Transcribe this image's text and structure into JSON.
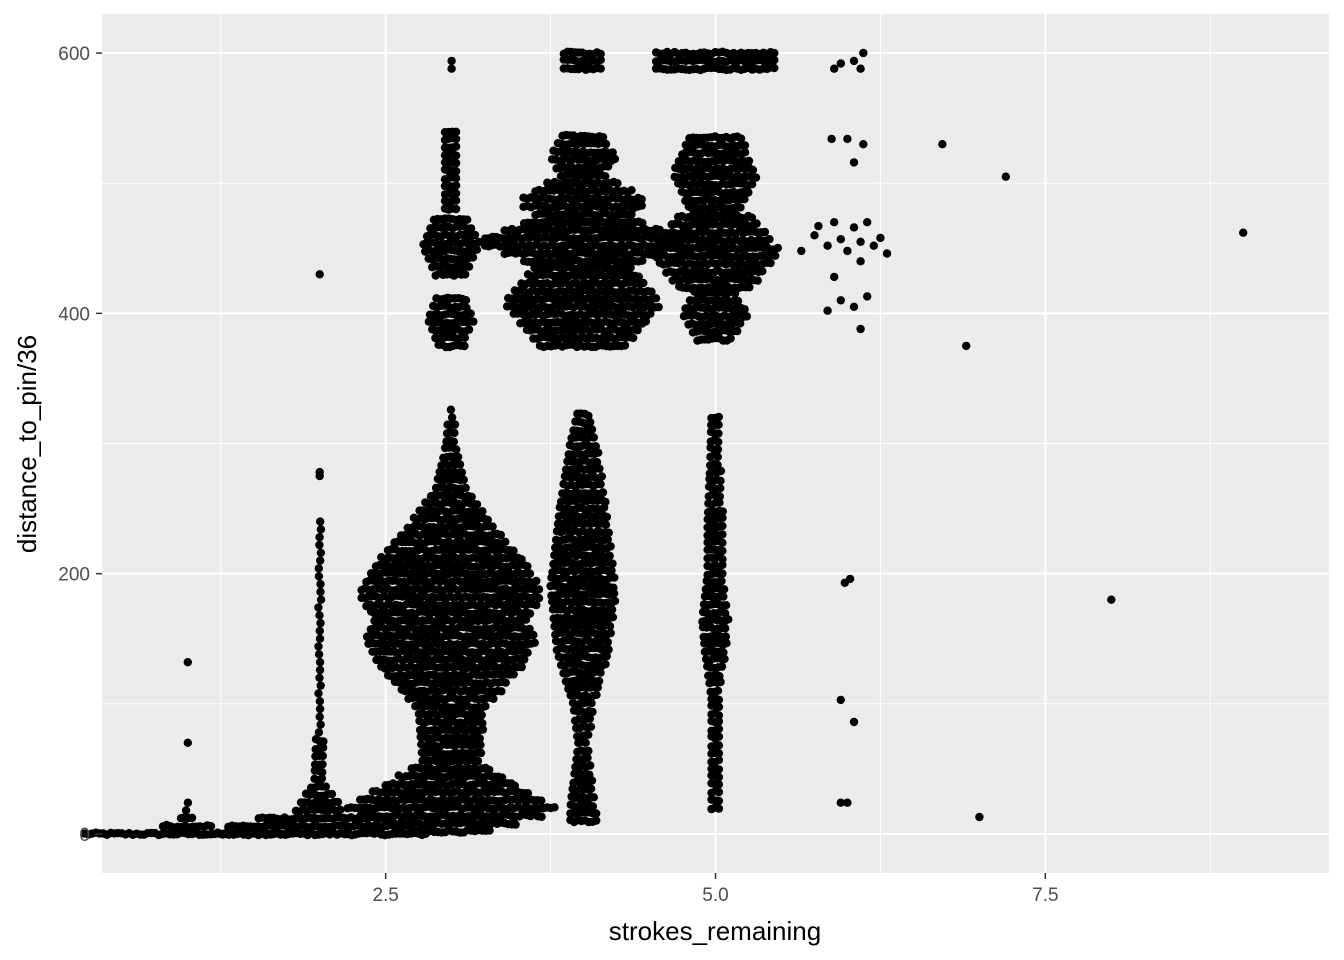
{
  "chart_data": {
    "type": "scatter",
    "subtype": "beeswarm",
    "xlabel": "strokes_remaining",
    "ylabel": "distance_to_pin/36",
    "xlim": [
      0.35,
      9.65
    ],
    "ylim": [
      -30,
      630
    ],
    "x_ticks": [
      2.5,
      5.0,
      7.5
    ],
    "x_tick_labels": [
      "2.5",
      "5.0",
      "7.5"
    ],
    "x_minor_ticks": [
      1.25,
      3.75,
      6.25,
      8.75
    ],
    "y_ticks": [
      0,
      200,
      400,
      600
    ],
    "y_tick_labels": [
      "0",
      "200",
      "400",
      "600"
    ],
    "y_minor_ticks": [
      100,
      300,
      500
    ],
    "grid": true,
    "colors": {
      "panel": "#ebebeb",
      "grid": "#ffffff",
      "point": "#000000",
      "tick_text": "#4d4d4d",
      "tick_mark": "#333333"
    },
    "groups": [
      {
        "strokes_remaining": 1,
        "density_profile": [
          [
            0,
            0.78
          ],
          [
            3,
            0.35
          ],
          [
            8,
            0.08
          ],
          [
            15,
            0.03
          ],
          [
            24,
            0.02
          ]
        ],
        "outliers": [
          70,
          132
        ]
      },
      {
        "strokes_remaining": 2,
        "density_profile": [
          [
            0,
            0.82
          ],
          [
            8,
            0.65
          ],
          [
            18,
            0.18
          ],
          [
            40,
            0.04
          ],
          [
            80,
            0.025
          ],
          [
            240,
            0.02
          ]
        ],
        "outliers": [
          275,
          278,
          430
        ]
      },
      {
        "strokes_remaining": 3,
        "density_profile": [
          [
            2,
            0.3
          ],
          [
            18,
            0.82
          ],
          [
            35,
            0.55
          ],
          [
            55,
            0.22
          ],
          [
            95,
            0.25
          ],
          [
            130,
            0.55
          ],
          [
            150,
            0.65
          ],
          [
            165,
            0.58
          ],
          [
            185,
            0.7
          ],
          [
            210,
            0.55
          ],
          [
            240,
            0.3
          ],
          [
            265,
            0.12
          ],
          [
            300,
            0.04
          ],
          [
            330,
            0.02
          ]
        ],
        "clusters": [
          [
            375,
            415,
            0.18
          ],
          [
            430,
            475,
            0.22
          ]
        ],
        "column": [
          [
            480,
            540,
            0.05
          ]
        ],
        "outliers": [
          588,
          594
        ]
      },
      {
        "strokes_remaining": 4,
        "density_profile": [
          [
            10,
            0.1
          ],
          [
            20,
            0.1
          ],
          [
            45,
            0.07
          ],
          [
            70,
            0.04
          ],
          [
            100,
            0.08
          ],
          [
            140,
            0.2
          ],
          [
            190,
            0.25
          ],
          [
            250,
            0.18
          ],
          [
            300,
            0.1
          ],
          [
            325,
            0.04
          ]
        ],
        "clusters": [
          [
            375,
            440,
            0.6
          ],
          [
            440,
            470,
            0.82
          ],
          [
            470,
            500,
            0.5
          ],
          [
            500,
            540,
            0.25
          ]
        ],
        "column": [
          [
            588,
            600,
            0.15
          ]
        ]
      },
      {
        "strokes_remaining": 5,
        "density_profile": [
          [
            20,
            0.03
          ],
          [
            60,
            0.03
          ],
          [
            105,
            0.03
          ],
          [
            140,
            0.08
          ],
          [
            165,
            0.1
          ],
          [
            200,
            0.06
          ],
          [
            240,
            0.06
          ],
          [
            285,
            0.04
          ],
          [
            325,
            0.03
          ]
        ],
        "clusters": [
          [
            380,
            420,
            0.25
          ],
          [
            420,
            475,
            0.5
          ],
          [
            475,
            540,
            0.32
          ]
        ],
        "column": [
          [
            588,
            600,
            0.45
          ]
        ]
      },
      {
        "strokes_remaining": 6,
        "points": [
          [
            5.95,
            24
          ],
          [
            6.0,
            24
          ],
          [
            6.05,
            86
          ],
          [
            5.95,
            103
          ],
          [
            5.98,
            193
          ],
          [
            6.02,
            196
          ],
          [
            5.65,
            448
          ],
          [
            5.75,
            460
          ],
          [
            5.85,
            452
          ],
          [
            5.9,
            470
          ],
          [
            5.78,
            467
          ],
          [
            5.95,
            457
          ],
          [
            6.05,
            466
          ],
          [
            6.15,
            470
          ],
          [
            6.25,
            458
          ],
          [
            6.3,
            446
          ],
          [
            6.1,
            455
          ],
          [
            6.0,
            448
          ],
          [
            6.2,
            452
          ],
          [
            5.9,
            428
          ],
          [
            6.1,
            440
          ],
          [
            5.85,
            402
          ],
          [
            5.95,
            410
          ],
          [
            6.05,
            405
          ],
          [
            6.1,
            388
          ],
          [
            6.15,
            413
          ],
          [
            5.88,
            534
          ],
          [
            6.0,
            534
          ],
          [
            6.05,
            516
          ],
          [
            6.12,
            530
          ],
          [
            5.9,
            588
          ],
          [
            5.95,
            592
          ],
          [
            6.05,
            594
          ],
          [
            6.1,
            588
          ],
          [
            6.12,
            600
          ]
        ]
      },
      {
        "strokes_remaining": 7,
        "points": [
          [
            6.72,
            530
          ],
          [
            6.9,
            375
          ],
          [
            7.0,
            13
          ],
          [
            7.2,
            505
          ]
        ]
      },
      {
        "strokes_remaining": 8,
        "points": [
          [
            8.0,
            180
          ]
        ]
      },
      {
        "strokes_remaining": 9,
        "points": [
          [
            9.0,
            462
          ]
        ]
      }
    ]
  }
}
